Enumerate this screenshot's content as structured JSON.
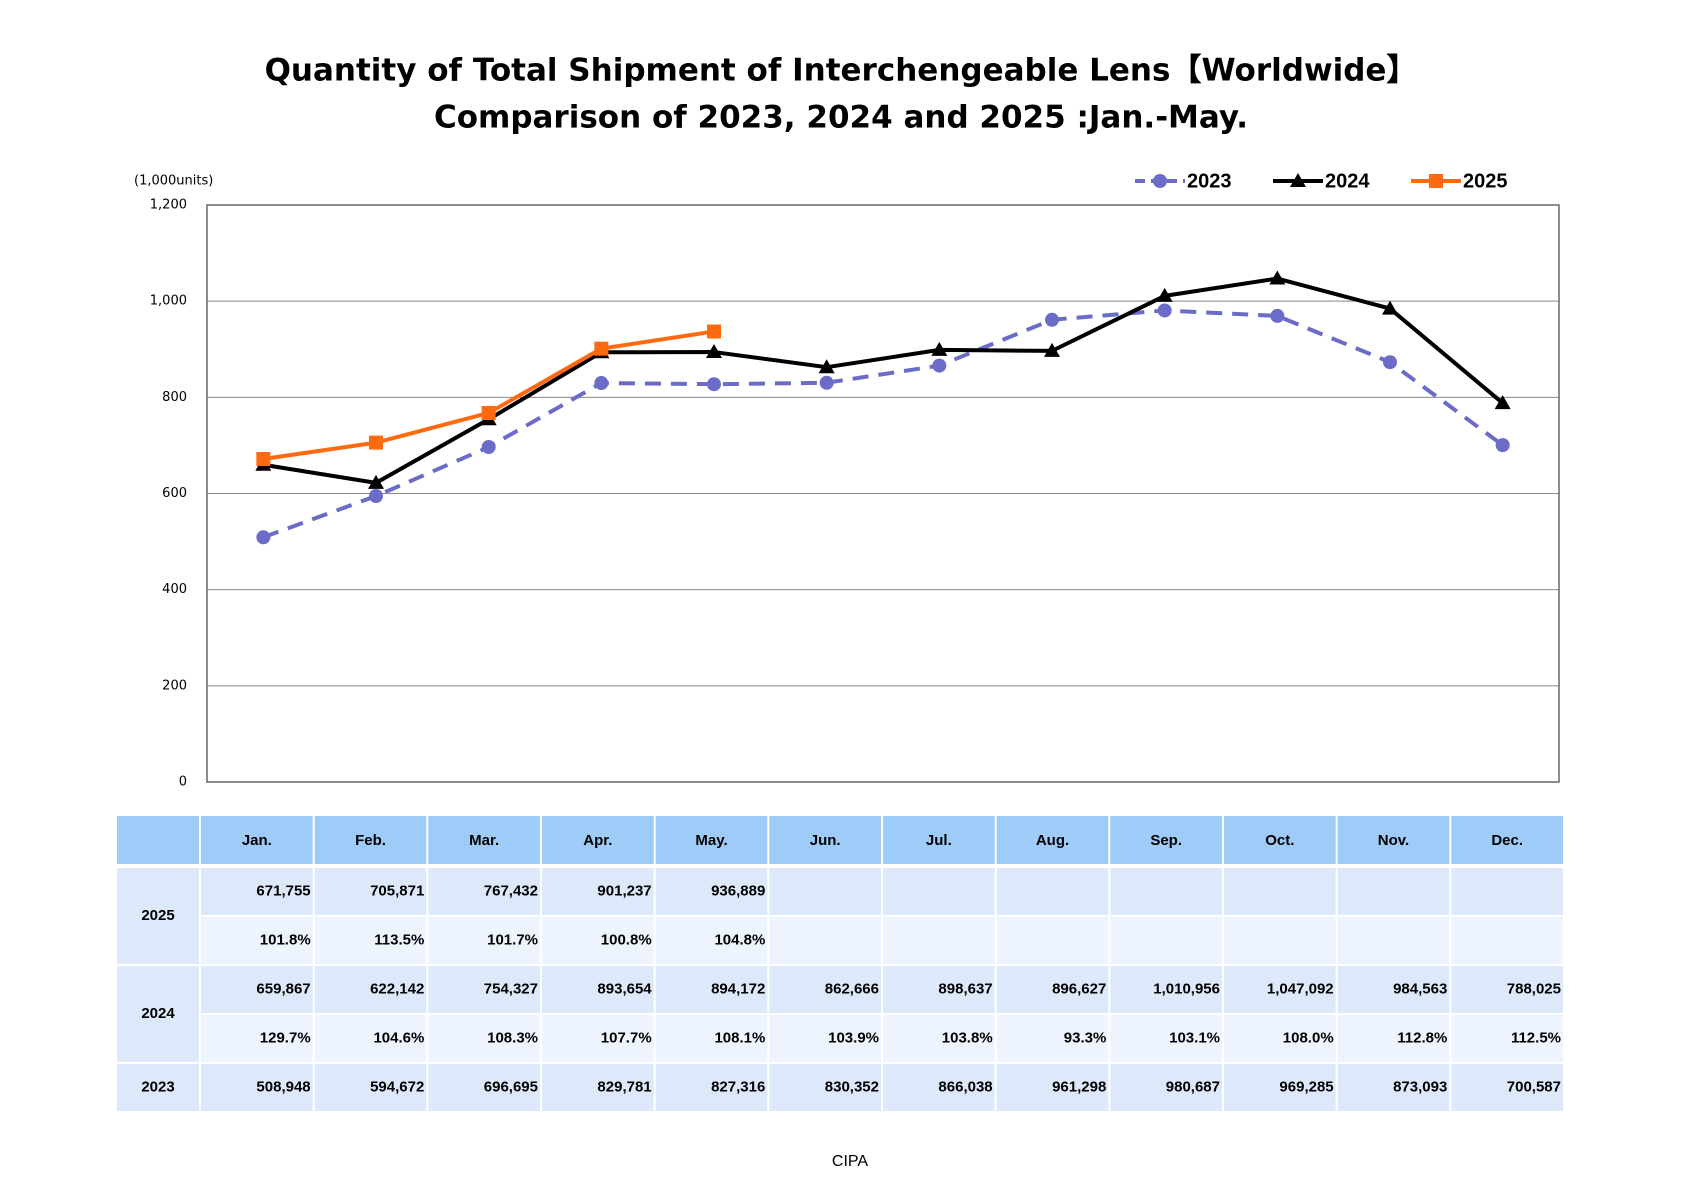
{
  "chart_data": {
    "type": "line",
    "title": "Quantity of Total Shipment of Interchengeable Lens【Worldwide】",
    "subtitle": "Comparison of 2023, 2024 and 2025 :Jan.-May.",
    "y_label": "(1,000units)",
    "source": "CIPA",
    "categories": [
      "Jan.",
      "Feb.",
      "Mar.",
      "Apr.",
      "May.",
      "Jun.",
      "Jul.",
      "Aug.",
      "Sep.",
      "Oct.",
      "Nov.",
      "Dec."
    ],
    "ylim": [
      0,
      1200
    ],
    "yticks": [
      0,
      200,
      400,
      600,
      800,
      {
        "value": 1000,
        "label": "1,000"
      },
      {
        "value": 1200,
        "label": "1,200"
      }
    ],
    "grid": true,
    "legend": "top-right",
    "series": [
      {
        "name": "2023",
        "color": "#6b6bc8",
        "dash": true,
        "marker": "circle",
        "values": [
          508.948,
          594.672,
          696.695,
          829.781,
          827.316,
          830.352,
          866.038,
          961.298,
          980.687,
          969.285,
          873.093,
          700.587
        ],
        "value_labels": [
          "508,948",
          "594,672",
          "696,695",
          "829,781",
          "827,316",
          "830,352",
          "866,038",
          "961,298",
          "980,687",
          "969,285",
          "873,093",
          "700,587"
        ]
      },
      {
        "name": "2024",
        "color": "#000000",
        "dash": false,
        "marker": "triangle",
        "values": [
          659.867,
          622.142,
          754.327,
          893.654,
          894.172,
          862.666,
          898.637,
          896.627,
          1010.956,
          1047.092,
          984.563,
          788.025
        ],
        "value_labels": [
          "659,867",
          "622,142",
          "754,327",
          "893,654",
          "894,172",
          "862,666",
          "898,637",
          "896,627",
          "1,010,956",
          "1,047,092",
          "984,563",
          "788,025"
        ],
        "ratio_labels": [
          "129.7%",
          "104.6%",
          "108.3%",
          "107.7%",
          "108.1%",
          "103.9%",
          "103.8%",
          "93.3%",
          "103.1%",
          "108.0%",
          "112.8%",
          "112.5%"
        ]
      },
      {
        "name": "2025",
        "color": "#ff6a10",
        "dash": false,
        "marker": "square",
        "values": [
          671.755,
          705.871,
          767.432,
          901.237,
          936.889,
          null,
          null,
          null,
          null,
          null,
          null,
          null
        ],
        "value_labels": [
          "671,755",
          "705,871",
          "767,432",
          "901,237",
          "936,889",
          null,
          null,
          null,
          null,
          null,
          null,
          null
        ],
        "ratio_labels": [
          "101.8%",
          "113.5%",
          "101.7%",
          "100.8%",
          "104.8%",
          null,
          null,
          null,
          null,
          null,
          null,
          null
        ]
      }
    ]
  }
}
